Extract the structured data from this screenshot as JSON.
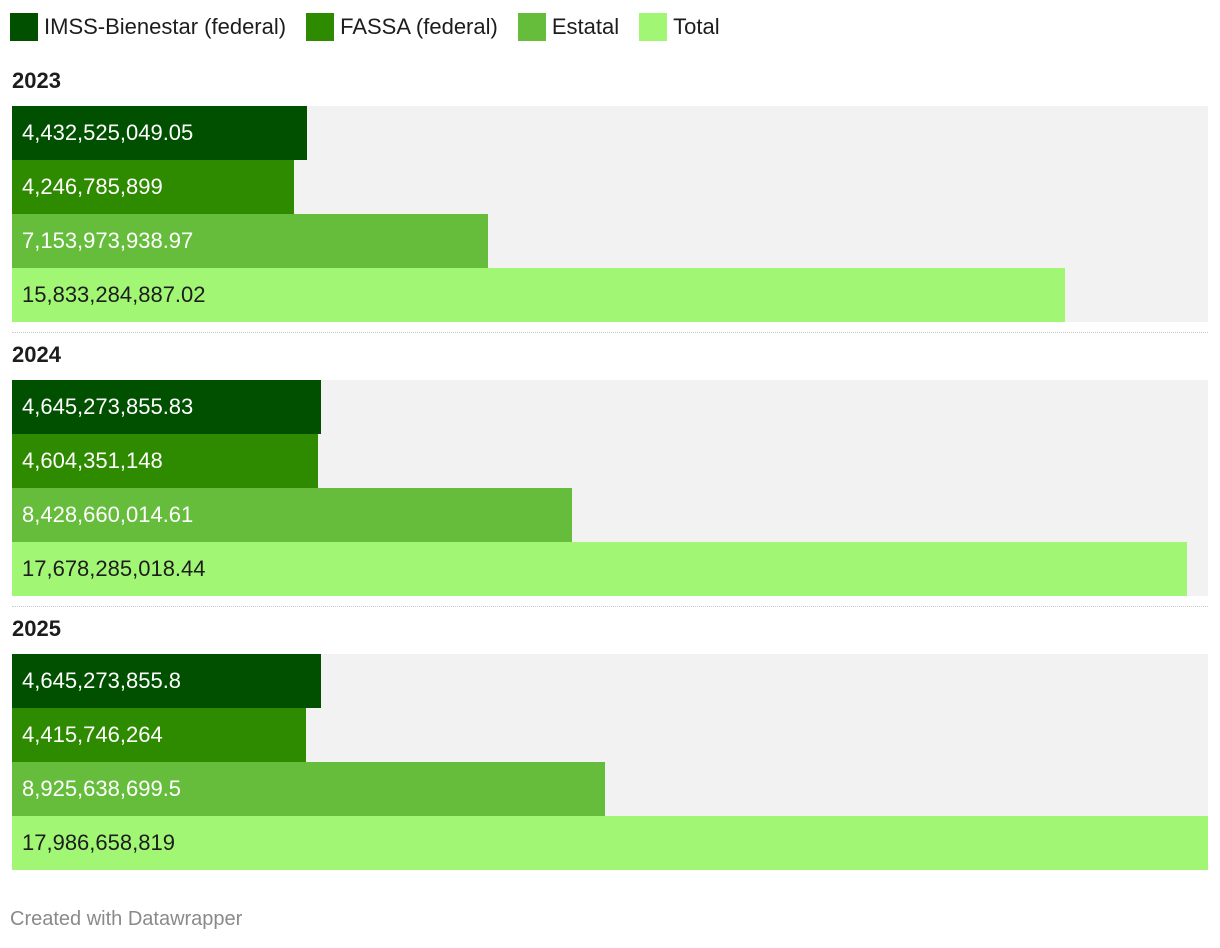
{
  "legend": [
    {
      "label": "IMSS-Bienestar (federal)",
      "color": "#005000"
    },
    {
      "label": "FASSA (federal)",
      "color": "#2e8b00"
    },
    {
      "label": "Estatal",
      "color": "#66bd3c"
    },
    {
      "label": "Total",
      "color": "#a1f774"
    }
  ],
  "footer": "Created with Datawrapper",
  "chart_data": {
    "type": "bar",
    "orientation": "horizontal",
    "grid": false,
    "legend_position": "top-left",
    "categories": [
      "2023",
      "2024",
      "2025"
    ],
    "series": [
      {
        "name": "IMSS-Bienestar (federal)",
        "color": "#005000",
        "text_color": "#ffffff",
        "values": [
          4432525049.05,
          4645273855.83,
          4645273855.8
        ],
        "labels": [
          "4,432,525,049.05",
          "4,645,273,855.83",
          "4,645,273,855.8"
        ]
      },
      {
        "name": "FASSA (federal)",
        "color": "#2e8b00",
        "text_color": "#ffffff",
        "values": [
          4246785899,
          4604351148,
          4415746264
        ],
        "labels": [
          "4,246,785,899",
          "4,604,351,148",
          "4,415,746,264"
        ]
      },
      {
        "name": "Estatal",
        "color": "#66bd3c",
        "text_color": "#ffffff",
        "values": [
          7153973938.97,
          8428660014.61,
          8925638699.5
        ],
        "labels": [
          "7,153,973,938.97",
          "8,428,660,014.61",
          "8,925,638,699.5"
        ]
      },
      {
        "name": "Total",
        "color": "#a1f774",
        "text_color": "#1d1d1d",
        "values": [
          15833284887.02,
          17678285018.44,
          17986658819
        ],
        "labels": [
          "15,833,284,887.02",
          "17,678,285,018.44",
          "17,986,658,819"
        ]
      }
    ],
    "xlim": [
      0,
      17986658819
    ]
  }
}
